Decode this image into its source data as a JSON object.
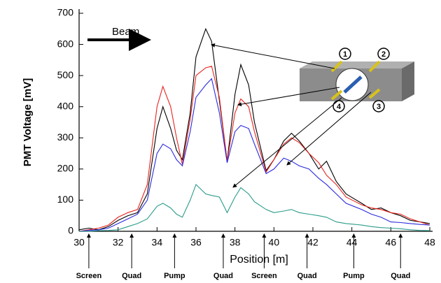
{
  "chart_data": {
    "type": "line",
    "x_label": "Position [m]",
    "y_label": "PMT Voltage [mV]",
    "beam_label": "Beam",
    "xlim": [
      30,
      48
    ],
    "xticks": [
      30,
      32,
      34,
      36,
      38,
      40,
      42,
      44,
      46,
      48
    ],
    "ylim": [
      0,
      700
    ],
    "yticks": [
      0,
      100,
      200,
      300,
      400,
      500,
      600,
      700
    ],
    "x": [
      30,
      30.5,
      31,
      31.5,
      32,
      32.5,
      33,
      33.5,
      34,
      34.3,
      34.7,
      35,
      35.3,
      35.7,
      36,
      36.5,
      36.8,
      37.2,
      37.6,
      38,
      38.3,
      38.7,
      39,
      39.6,
      40,
      40.5,
      40.9,
      41.3,
      41.8,
      42.3,
      42.7,
      43.2,
      43.7,
      44.5,
      45,
      45.5,
      46,
      46.5,
      47,
      47.5,
      48
    ],
    "series": [
      {
        "color": "#000000",
        "values": [
          5,
          10,
          5,
          15,
          35,
          50,
          60,
          120,
          330,
          400,
          330,
          260,
          230,
          380,
          560,
          650,
          610,
          420,
          225,
          440,
          535,
          470,
          350,
          195,
          230,
          290,
          315,
          290,
          250,
          200,
          225,
          160,
          120,
          90,
          70,
          75,
          60,
          50,
          35,
          30,
          25
        ]
      },
      {
        "color": "#e8231e",
        "values": [
          0,
          5,
          10,
          20,
          45,
          60,
          70,
          150,
          400,
          465,
          400,
          300,
          215,
          360,
          500,
          525,
          530,
          430,
          225,
          380,
          425,
          400,
          320,
          190,
          230,
          280,
          300,
          285,
          250,
          220,
          180,
          150,
          110,
          85,
          75,
          70,
          60,
          55,
          40,
          30,
          20
        ]
      },
      {
        "color": "#2a2ae0",
        "values": [
          0,
          3,
          5,
          10,
          25,
          40,
          55,
          100,
          250,
          280,
          265,
          230,
          210,
          320,
          430,
          470,
          490,
          380,
          220,
          320,
          340,
          330,
          280,
          185,
          200,
          235,
          225,
          210,
          200,
          170,
          150,
          120,
          90,
          70,
          55,
          45,
          30,
          28,
          25,
          22,
          20
        ]
      },
      {
        "color": "#2a9c8a",
        "values": [
          0,
          0,
          2,
          3,
          5,
          15,
          25,
          40,
          80,
          90,
          75,
          55,
          45,
          100,
          150,
          120,
          115,
          110,
          60,
          110,
          140,
          120,
          95,
          70,
          60,
          65,
          70,
          60,
          55,
          50,
          45,
          30,
          25,
          20,
          15,
          12,
          10,
          8,
          5,
          3,
          2
        ]
      }
    ],
    "components": [
      {
        "label": "Screen",
        "x": 30.5
      },
      {
        "label": "Quad",
        "x": 32.7
      },
      {
        "label": "Pump",
        "x": 34.9
      },
      {
        "label": "Quad",
        "x": 37.4
      },
      {
        "label": "Screen",
        "x": 39.5
      },
      {
        "label": "Quad",
        "x": 41.7
      },
      {
        "label": "Pump",
        "x": 44.1
      },
      {
        "label": "Quad",
        "x": 46.5
      }
    ],
    "inset_labels": [
      "1",
      "2",
      "3",
      "4"
    ]
  }
}
